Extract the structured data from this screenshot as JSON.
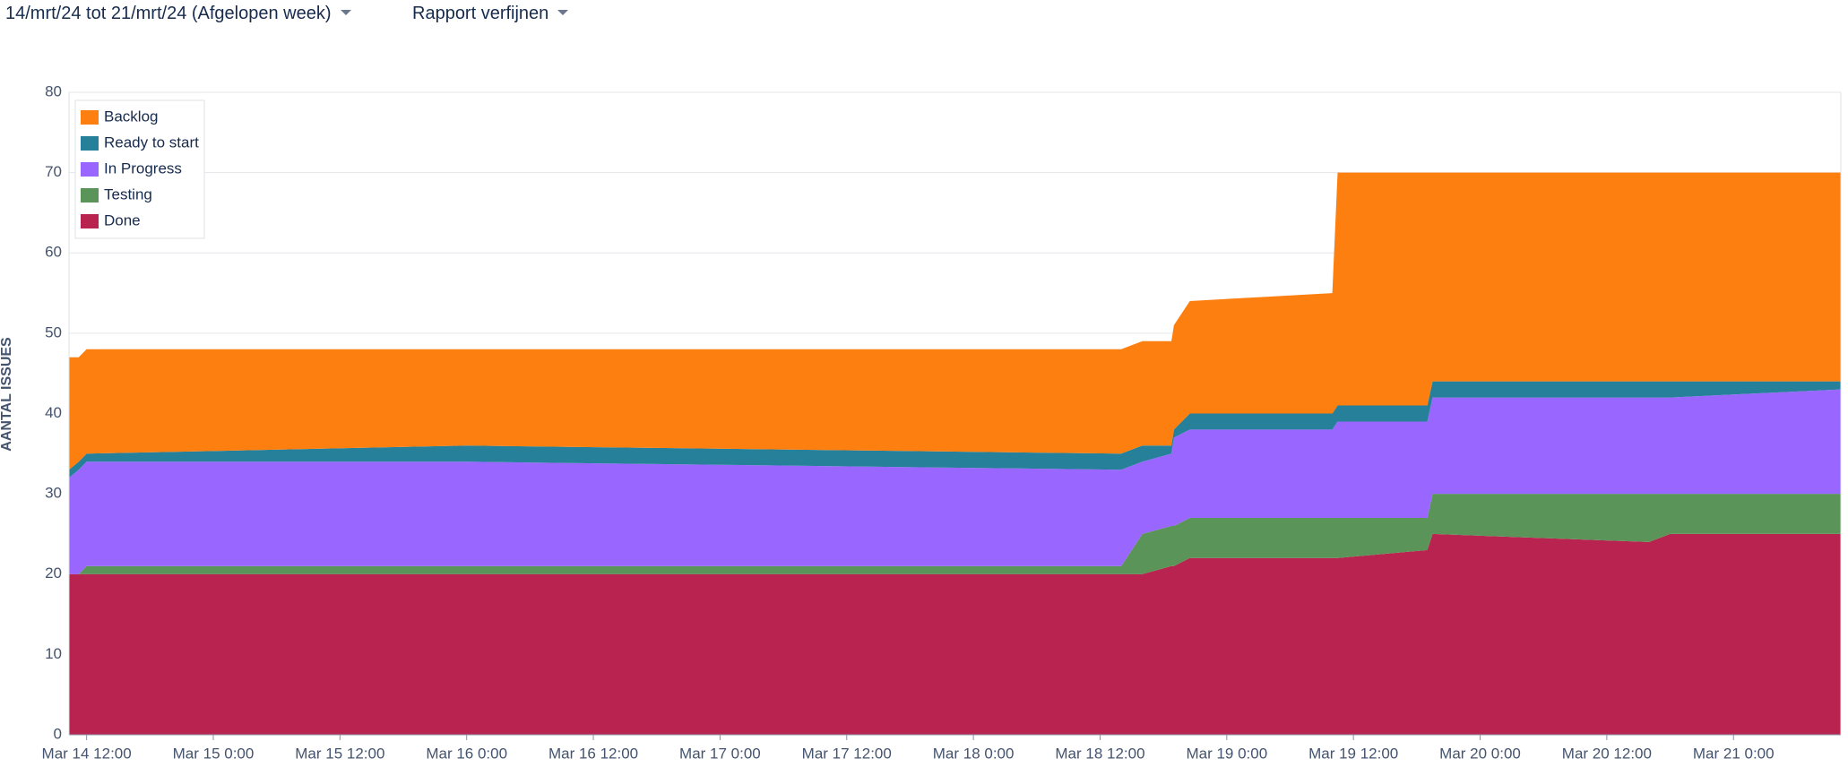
{
  "header": {
    "date_range": "14/mrt/24 tot 21/mrt/24 (Afgelopen week)",
    "refine": "Rapport verfijnen"
  },
  "chart_data": {
    "type": "stacked_area",
    "y_label": "AANTAL ISSUES",
    "x": [
      "Mar 14 10:20",
      "Mar 14 11:15",
      "Mar 14 12:00",
      "Mar 16 0:00",
      "Mar 18 14:00",
      "Mar 18 16:00",
      "Mar 18 18:45",
      "Mar 18 19:00",
      "Mar 18 20:30",
      "Mar 19 10:00",
      "Mar 19 10:30",
      "Mar 19 19:00",
      "Mar 19 19:30",
      "Mar 20 16:00",
      "Mar 20 18:00",
      "Mar 21 10:10"
    ],
    "series": [
      {
        "name": "Done",
        "color": "#b8244f",
        "values": [
          20,
          20,
          20,
          20,
          20,
          20,
          21,
          21,
          22,
          22,
          22,
          23,
          25,
          24,
          25,
          25
        ]
      },
      {
        "name": "Testing",
        "color": "#5b9458",
        "values": [
          0,
          0,
          1,
          1,
          1,
          5,
          5,
          5,
          5,
          5,
          5,
          4,
          5,
          6,
          5,
          5
        ]
      },
      {
        "name": "In Progress",
        "color": "#9966ff",
        "values": [
          12,
          13,
          13,
          13,
          12,
          9,
          9,
          11,
          11,
          11,
          12,
          12,
          12,
          12,
          12,
          13
        ]
      },
      {
        "name": "Ready to start",
        "color": "#26809a",
        "values": [
          1,
          1,
          1,
          2,
          2,
          2,
          1,
          1,
          2,
          2,
          2,
          2,
          2,
          2,
          2,
          1
        ]
      },
      {
        "name": "Backlog",
        "color": "#fd7f0f",
        "values": [
          14,
          13,
          13,
          12,
          13,
          13,
          13,
          13,
          14,
          15,
          29,
          29,
          26,
          26,
          26,
          26
        ]
      }
    ],
    "xlim": [
      "Mar 14 10:20",
      "Mar 21 10:10"
    ],
    "xticks": [
      "Mar 14 12:00",
      "Mar 15 0:00",
      "Mar 15 12:00",
      "Mar 16 0:00",
      "Mar 16 12:00",
      "Mar 17 0:00",
      "Mar 17 12:00",
      "Mar 18 0:00",
      "Mar 18 12:00",
      "Mar 19 0:00",
      "Mar 19 12:00",
      "Mar 20 0:00",
      "Mar 20 12:00",
      "Mar 21 0:00"
    ],
    "ylim": [
      0,
      80
    ],
    "yticks": [
      0,
      10,
      20,
      30,
      40,
      50,
      60,
      70,
      80
    ],
    "grid": true,
    "legend": "upper left"
  }
}
